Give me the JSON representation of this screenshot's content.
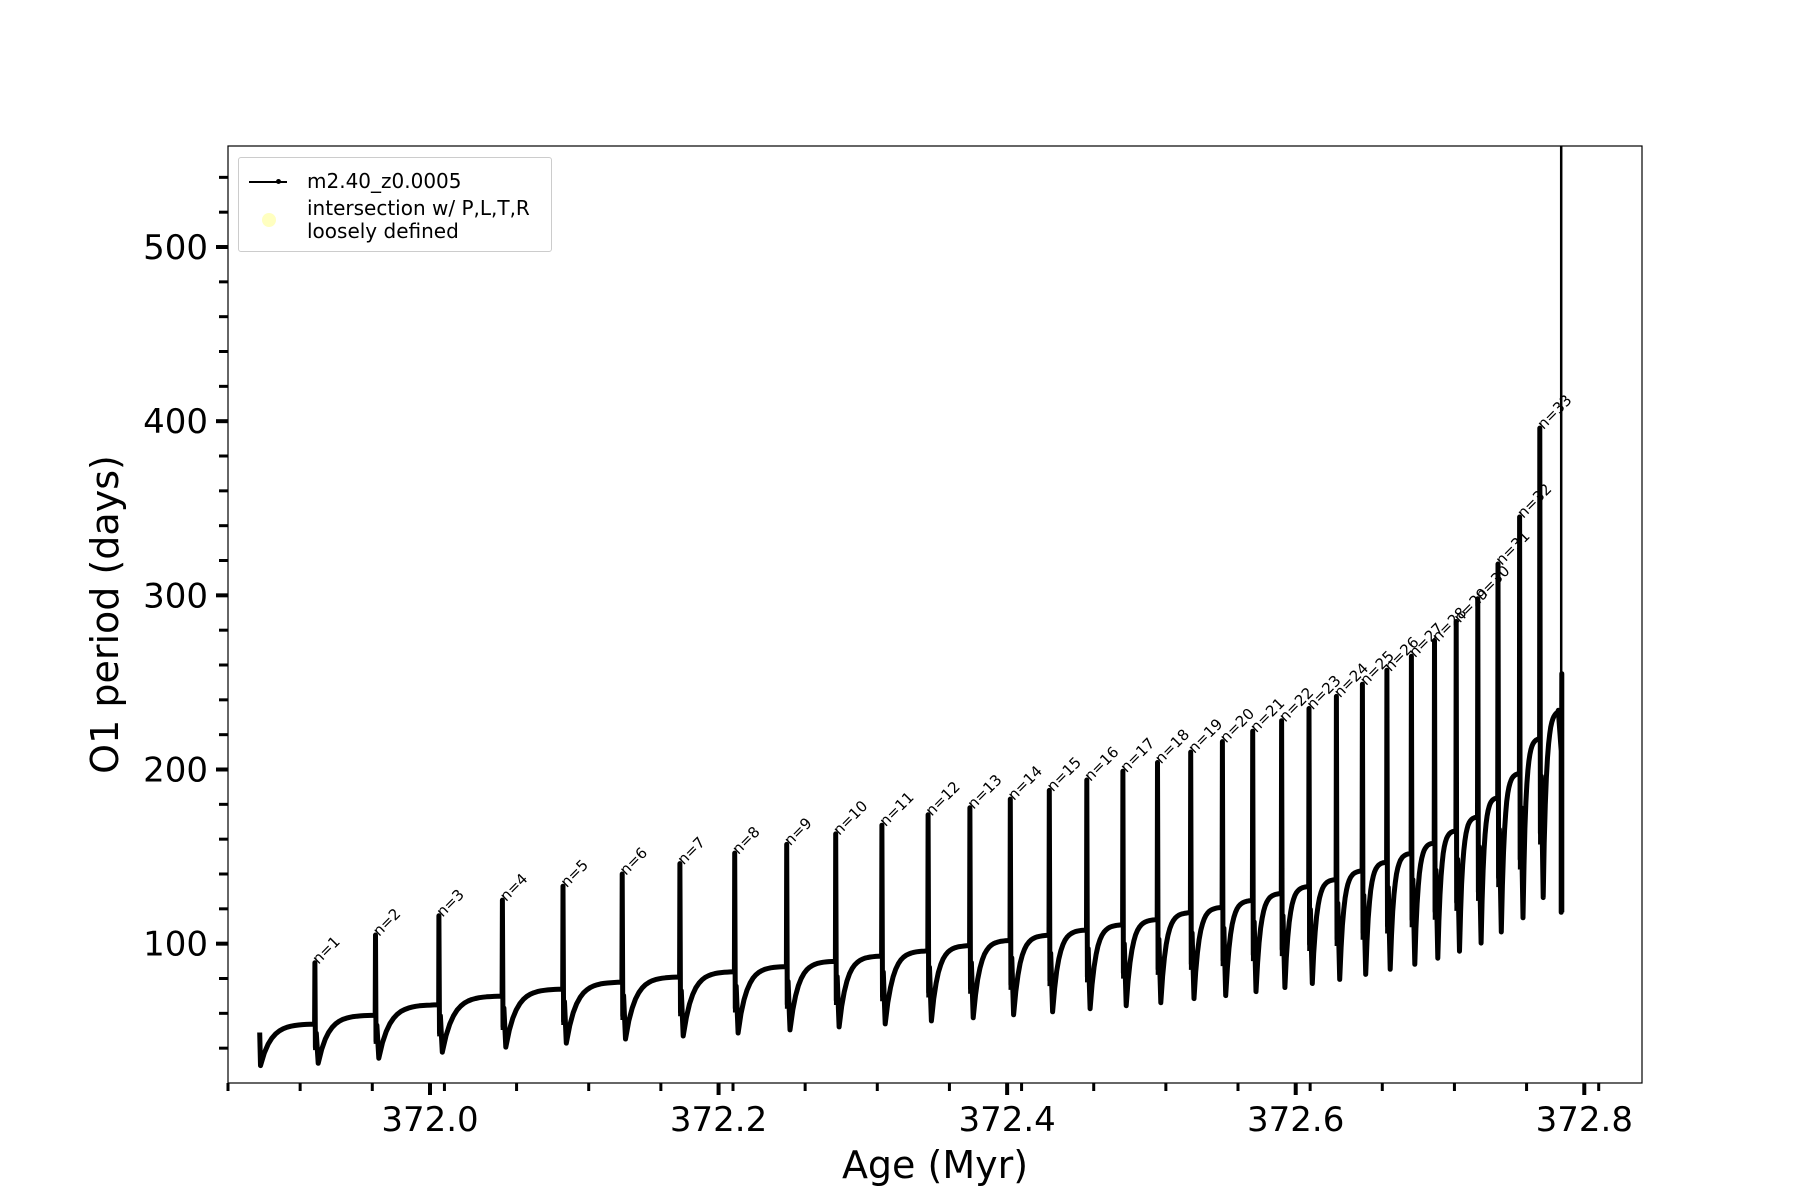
{
  "chart_data": {
    "type": "line",
    "xlabel": "Age (Myr)",
    "ylabel": "O1 period (days)",
    "xlim": [
      371.86,
      372.84
    ],
    "ylim": [
      20,
      558
    ],
    "xticks": [
      372.0,
      372.2,
      372.4,
      372.6,
      372.8
    ],
    "xtick_labels": [
      "372.0",
      "372.2",
      "372.4",
      "372.6",
      "372.8"
    ],
    "yticks": [
      100,
      200,
      300,
      400,
      500
    ],
    "ytick_labels": [
      "100",
      "200",
      "300",
      "400",
      "500"
    ],
    "grid": false,
    "legend_position": "top-left",
    "series": [
      {
        "name": "m2.40_z0.0005",
        "color": "#000000",
        "pulses": [
          {
            "n": 1,
            "x": 371.92,
            "peak": 89,
            "base": 54
          },
          {
            "n": 2,
            "x": 371.962,
            "peak": 105,
            "base": 59
          },
          {
            "n": 3,
            "x": 372.006,
            "peak": 116,
            "base": 65
          },
          {
            "n": 4,
            "x": 372.05,
            "peak": 125,
            "base": 70
          },
          {
            "n": 5,
            "x": 372.092,
            "peak": 133,
            "base": 74
          },
          {
            "n": 6,
            "x": 372.133,
            "peak": 140,
            "base": 78
          },
          {
            "n": 7,
            "x": 372.173,
            "peak": 146,
            "base": 81
          },
          {
            "n": 8,
            "x": 372.211,
            "peak": 152,
            "base": 84
          },
          {
            "n": 9,
            "x": 372.247,
            "peak": 157,
            "base": 87
          },
          {
            "n": 10,
            "x": 372.281,
            "peak": 163,
            "base": 90
          },
          {
            "n": 11,
            "x": 372.313,
            "peak": 168,
            "base": 93
          },
          {
            "n": 12,
            "x": 372.345,
            "peak": 174,
            "base": 96
          },
          {
            "n": 13,
            "x": 372.374,
            "peak": 178,
            "base": 99
          },
          {
            "n": 14,
            "x": 372.402,
            "peak": 183,
            "base": 102
          },
          {
            "n": 15,
            "x": 372.429,
            "peak": 188,
            "base": 105
          },
          {
            "n": 16,
            "x": 372.455,
            "peak": 194,
            "base": 108
          },
          {
            "n": 17,
            "x": 372.48,
            "peak": 199,
            "base": 111
          },
          {
            "n": 18,
            "x": 372.504,
            "peak": 204,
            "base": 114
          },
          {
            "n": 19,
            "x": 372.527,
            "peak": 210,
            "base": 118
          },
          {
            "n": 20,
            "x": 372.549,
            "peak": 216,
            "base": 121
          },
          {
            "n": 21,
            "x": 372.57,
            "peak": 222,
            "base": 125
          },
          {
            "n": 22,
            "x": 372.59,
            "peak": 228,
            "base": 129
          },
          {
            "n": 23,
            "x": 372.609,
            "peak": 235,
            "base": 133
          },
          {
            "n": 24,
            "x": 372.628,
            "peak": 242,
            "base": 137
          },
          {
            "n": 25,
            "x": 372.646,
            "peak": 249,
            "base": 142
          },
          {
            "n": 26,
            "x": 372.663,
            "peak": 257,
            "base": 147
          },
          {
            "n": 27,
            "x": 372.68,
            "peak": 265,
            "base": 152
          },
          {
            "n": 28,
            "x": 372.696,
            "peak": 274,
            "base": 158
          },
          {
            "n": 29,
            "x": 372.711,
            "peak": 285,
            "base": 165
          },
          {
            "n": 30,
            "x": 372.726,
            "peak": 298,
            "base": 173
          },
          {
            "n": 31,
            "x": 372.74,
            "peak": 318,
            "base": 184
          },
          {
            "n": 32,
            "x": 372.755,
            "peak": 345,
            "base": 198
          },
          {
            "n": 33,
            "x": 372.769,
            "peak": 396,
            "base": 218
          }
        ],
        "start": {
          "x": 371.882,
          "y": 49,
          "min": 30
        },
        "end": {
          "x": 372.784,
          "top": 558,
          "bottom": 118,
          "max": 234
        }
      }
    ],
    "legend": [
      {
        "label": "m2.40_z0.0005",
        "marker": "line"
      },
      {
        "label": "intersection w/ P,L,T,R\nloosely defined",
        "marker": "circle",
        "color": "#ffffc0"
      }
    ]
  }
}
